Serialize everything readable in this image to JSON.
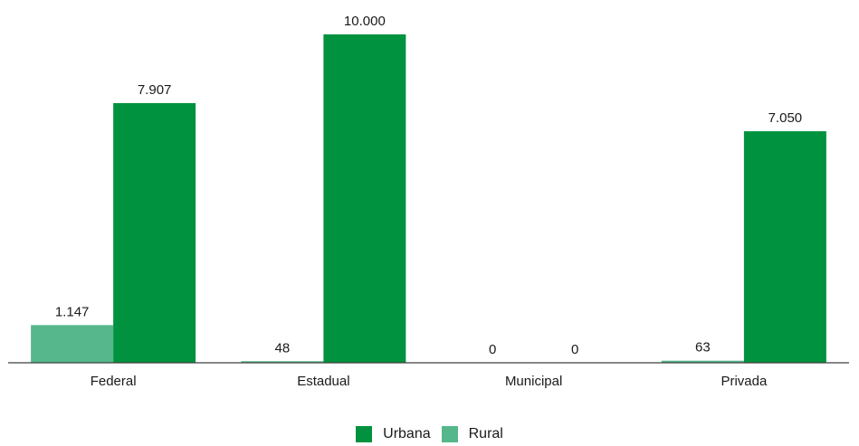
{
  "chart_data": {
    "type": "bar",
    "categories": [
      "Federal",
      "Estadual",
      "Municipal",
      "Privada"
    ],
    "series": [
      {
        "name": "Rural",
        "color": "#55b78b",
        "values": [
          1147,
          48,
          0,
          63
        ],
        "labels": [
          "1.147",
          "48",
          "0",
          "63"
        ]
      },
      {
        "name": "Urbana",
        "color": "#00923f",
        "values": [
          7907,
          10000,
          0,
          7050
        ],
        "labels": [
          "7.907",
          "10.000",
          "0",
          "7.050"
        ]
      }
    ],
    "ylim": [
      0,
      10000
    ],
    "grid": false,
    "legend_position": "bottom",
    "legend_order": [
      "Urbana",
      "Rural"
    ],
    "axis_color": "#404040"
  }
}
